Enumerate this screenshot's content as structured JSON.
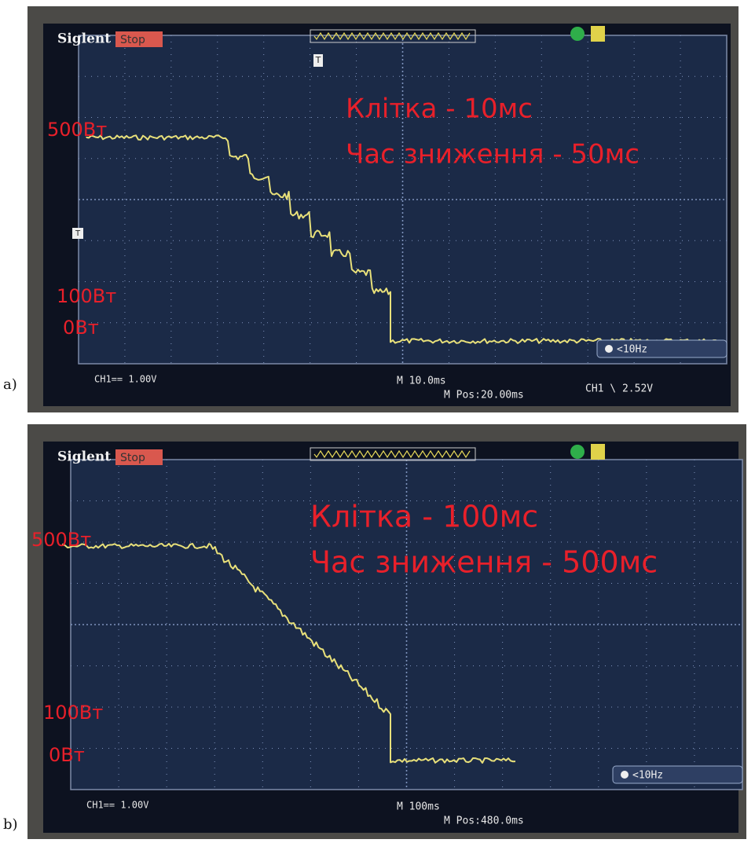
{
  "panels": [
    {
      "label": "a)",
      "brand": "Siglent",
      "status": "Stop",
      "trigger_marker": "T",
      "annotations": [
        "Клітка - 10мс",
        "Час зниження - 50мс"
      ],
      "levels": [
        "500Вт",
        "100Вт",
        "0Вт"
      ],
      "filter": "<10Hz",
      "channel": "CH1== 1.00V",
      "timebase": "M 10.0ms",
      "position": "M Pos:20.00ms",
      "trigger_level": "CH1 \\ 2.52V"
    },
    {
      "label": "b)",
      "brand": "Siglent",
      "status": "Stop",
      "annotations": [
        "Клітка - 100мс",
        "Час зниження - 500мс"
      ],
      "levels": [
        "500Вт",
        "100Вт",
        "0Вт"
      ],
      "filter": "<10Hz",
      "channel": "CH1== 1.00V",
      "timebase": "M 100ms",
      "position": "M Pos:480.0ms"
    }
  ]
}
